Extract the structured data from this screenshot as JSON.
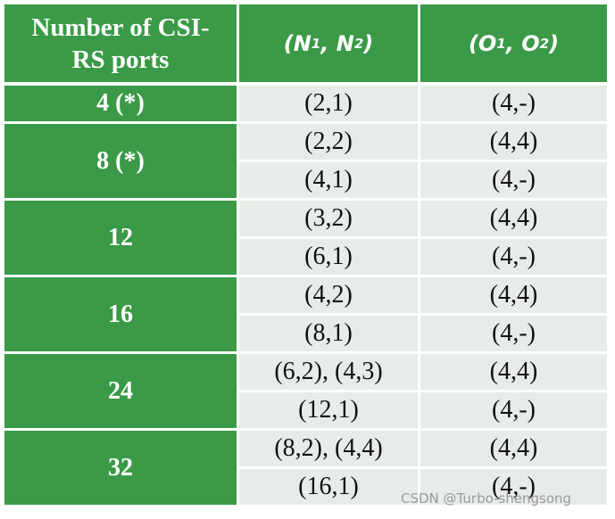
{
  "header": {
    "col1": [
      "Number of CSI-",
      "RS ports"
    ],
    "col2": [
      "(",
      "N",
      "1",
      ",",
      "N",
      "2",
      ")"
    ],
    "col3": [
      "(",
      "O",
      "1",
      ",",
      "O",
      "2",
      ")"
    ]
  },
  "groups": [
    {
      "ports": "4 (*)",
      "rows": [
        [
          "(2,1)",
          "(4,-)"
        ]
      ]
    },
    {
      "ports": "8 (*)",
      "rows": [
        [
          "(2,2)",
          "(4,4)"
        ],
        [
          "(4,1)",
          "(4,-)"
        ]
      ]
    },
    {
      "ports": "12",
      "rows": [
        [
          "(3,2)",
          "(4,4)"
        ],
        [
          "(6,1)",
          "(4,-)"
        ]
      ]
    },
    {
      "ports": "16",
      "rows": [
        [
          "(4,2)",
          "(4,4)"
        ],
        [
          "(8,1)",
          "(4,-)"
        ]
      ]
    },
    {
      "ports": "24",
      "rows": [
        [
          "(6,2), (4,3)",
          "(4,4)"
        ],
        [
          "(12,1)",
          "(4,-)"
        ]
      ]
    },
    {
      "ports": "32",
      "rows": [
        [
          "(8,2), (4,4)",
          "(4,4)"
        ],
        [
          "(16,1)",
          "(4,-)"
        ]
      ]
    }
  ],
  "watermark": "CSDN @Turbo-shengsong"
}
